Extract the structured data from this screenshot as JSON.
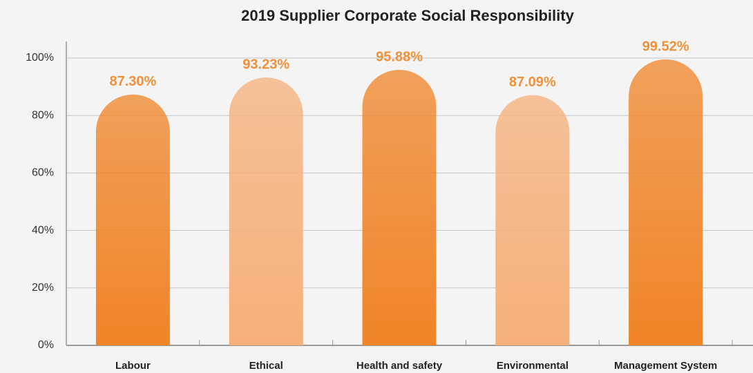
{
  "chart_data": {
    "type": "bar",
    "title": "2019 Supplier Corporate Social Responsibility",
    "categories": [
      "Labour",
      "Ethical",
      "Health and safety",
      "Environmental",
      "Management System"
    ],
    "values": [
      87.3,
      93.23,
      95.88,
      87.09,
      99.52
    ],
    "value_labels": [
      "87.30%",
      "93.23%",
      "95.88%",
      "87.09%",
      "99.52%"
    ],
    "colors": [
      "#f08428",
      "#f5b07a",
      "#f08428",
      "#f5b07a",
      "#f08428"
    ],
    "ylim": [
      0,
      100
    ],
    "yticks": [
      {
        "value": 0,
        "label": "0%"
      },
      {
        "value": 20,
        "label": "20%"
      },
      {
        "value": 40,
        "label": "40%"
      },
      {
        "value": 60,
        "label": "60%"
      },
      {
        "value": 80,
        "label": "80%"
      },
      {
        "value": 100,
        "label": "100%"
      }
    ],
    "grid": true
  }
}
